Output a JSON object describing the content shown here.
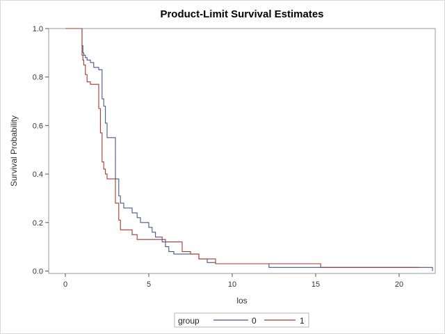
{
  "chart_data": {
    "type": "line",
    "step": true,
    "title": "Product-Limit Survival Estimates",
    "xlabel": "los",
    "ylabel": "Survival Probability",
    "xlim": [
      -1,
      22
    ],
    "ylim": [
      0,
      1.0
    ],
    "xticks": [
      0,
      5,
      10,
      15,
      20
    ],
    "yticks": [
      0.0,
      0.2,
      0.4,
      0.6,
      0.8,
      1.0
    ],
    "xtick_labels": [
      "0",
      "5",
      "10",
      "15",
      "20"
    ],
    "ytick_labels": [
      "0.0",
      "0.2",
      "0.4",
      "0.6",
      "0.8",
      "1.0"
    ],
    "grid": false,
    "legend": {
      "title": "group",
      "placement": "bottom-center",
      "entries": [
        "0",
        "1"
      ]
    },
    "series": [
      {
        "name": "0",
        "color": "#445694",
        "x": [
          0,
          1.0,
          1.05,
          1.1,
          1.2,
          1.3,
          1.5,
          1.7,
          2.0,
          2.2,
          2.3,
          2.4,
          2.5,
          3.0,
          3.2,
          3.3,
          3.5,
          4.0,
          4.3,
          4.5,
          5.0,
          5.2,
          5.4,
          5.8,
          6.0,
          6.2,
          6.5,
          7.0,
          8.0,
          8.5,
          9.0,
          10.0,
          12.2,
          15.0,
          21.2,
          22.0
        ],
        "y": [
          1.0,
          0.93,
          0.9,
          0.89,
          0.88,
          0.87,
          0.86,
          0.84,
          0.83,
          0.71,
          0.68,
          0.61,
          0.55,
          0.38,
          0.31,
          0.28,
          0.26,
          0.24,
          0.22,
          0.2,
          0.18,
          0.16,
          0.14,
          0.12,
          0.1,
          0.08,
          0.07,
          0.07,
          0.05,
          0.035,
          0.03,
          0.03,
          0.015,
          0.015,
          0.015,
          0.0
        ]
      },
      {
        "name": "1",
        "color": "#a23a2e",
        "x": [
          0,
          1.0,
          1.05,
          1.1,
          1.2,
          1.3,
          1.5,
          2.0,
          2.1,
          2.2,
          2.3,
          2.4,
          2.5,
          3.0,
          3.2,
          3.3,
          3.5,
          4.0,
          4.3,
          5.0,
          5.5,
          6.0,
          7.0,
          7.5,
          8.0,
          9.0,
          10.0,
          15.3,
          21.2
        ],
        "y": [
          1.0,
          0.89,
          0.87,
          0.85,
          0.81,
          0.78,
          0.77,
          0.67,
          0.57,
          0.45,
          0.42,
          0.4,
          0.38,
          0.28,
          0.21,
          0.17,
          0.17,
          0.15,
          0.13,
          0.13,
          0.13,
          0.12,
          0.08,
          0.07,
          0.05,
          0.03,
          0.03,
          0.015,
          0.015
        ]
      }
    ]
  }
}
